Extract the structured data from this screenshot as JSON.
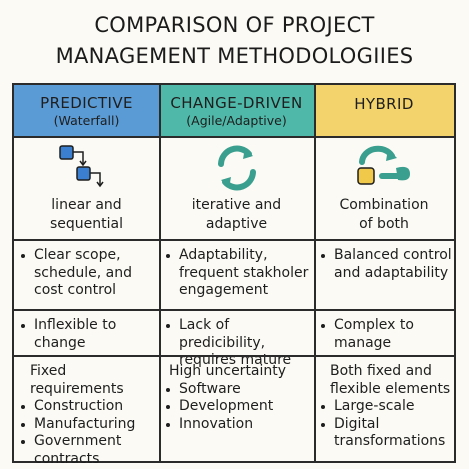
{
  "title": {
    "line1": "COMPARISON OF PROJECT",
    "line2": "MANAGEMENT METHODOLOGIIES"
  },
  "colors": {
    "predictive_header": "#5b9bd5",
    "change_header": "#4fb8a9",
    "hybrid_header": "#f3d36b",
    "icon_blue": "#3a7fd0",
    "icon_teal": "#3a9f8f",
    "icon_yellow": "#f0c84a"
  },
  "columns": [
    {
      "name": "PREDICTIVE",
      "subtitle": "(Waterfall)",
      "icon": "waterfall-steps-icon",
      "description": [
        "linear and",
        "sequential"
      ],
      "strengths": [
        "Clear scope,\nschedule, and\ncost control"
      ],
      "weaknesses": [
        "Inflexible to\nchange"
      ],
      "use_cases_intro": "Fixed requirements",
      "use_cases": [
        "Construction",
        "Manufacturing",
        "Government\ncontracts"
      ]
    },
    {
      "name": "CHANGE-DRIVEN",
      "subtitle": "(Agile/Adaptive)",
      "icon": "circular-arrows-icon",
      "description": [
        "iterative and",
        "adaptive"
      ],
      "strengths": [
        "Adaptability,\nfrequent stakholer\nengagement"
      ],
      "weaknesses": [
        "Lack of predicibility,\nrequires mature"
      ],
      "use_cases_intro": "High uncertainty",
      "use_cases": [
        "Software",
        "Development",
        "Innovation"
      ]
    },
    {
      "name": "HYBRID",
      "subtitle": "",
      "icon": "hybrid-loop-icon",
      "description": [
        "Combination",
        "of both"
      ],
      "strengths": [
        "Balanced control\nand adaptability"
      ],
      "weaknesses": [
        "Complex to\nmanage"
      ],
      "use_cases_intro": "Both fixed and\nflexible elements",
      "use_cases": [
        "Large-scale",
        "Digital\ntransformations"
      ]
    }
  ]
}
